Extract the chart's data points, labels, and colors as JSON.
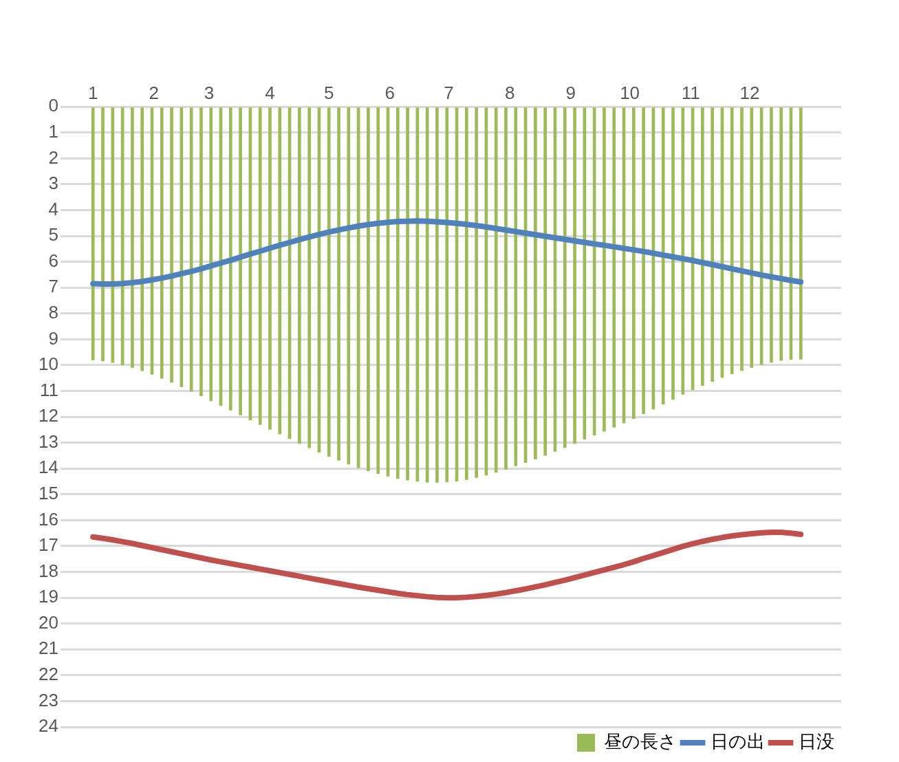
{
  "chart_data": {
    "type": "bar",
    "x": [
      "--01-01",
      "--01-06",
      "--01-11",
      "--01-16",
      "--01-21",
      "--01-26",
      "--01-31",
      "--02-05",
      "--02-10",
      "--02-15",
      "--02-20",
      "--02-25",
      "--03-02",
      "--03-07",
      "--03-12",
      "--03-17",
      "--03-22",
      "--03-27",
      "--04-01",
      "--04-06",
      "--04-11",
      "--04-16",
      "--04-21",
      "--04-26",
      "--05-01",
      "--05-06",
      "--05-11",
      "--05-16",
      "--05-21",
      "--05-26",
      "--05-31",
      "--06-05",
      "--06-10",
      "--06-15",
      "--06-20",
      "--06-25",
      "--06-30",
      "--07-05",
      "--07-10",
      "--07-15",
      "--07-20",
      "--07-25",
      "--07-30",
      "--08-04",
      "--08-09",
      "--08-14",
      "--08-19",
      "--08-24",
      "--08-29",
      "--09-03",
      "--09-08",
      "--09-13",
      "--09-18",
      "--09-23",
      "--09-28",
      "--10-03",
      "--10-08",
      "--10-13",
      "--10-18",
      "--10-23",
      "--10-28",
      "--11-02",
      "--11-07",
      "--11-12",
      "--11-17",
      "--11-22",
      "--11-27",
      "--12-02",
      "--12-07",
      "--12-12",
      "--12-17",
      "--12-22",
      "--12-27"
    ],
    "xlim": [
      "--01-01",
      "--12-31"
    ],
    "xticks": [
      {
        "value": "--01-01",
        "label": "1"
      },
      {
        "value": "--02-01",
        "label": "2"
      },
      {
        "value": "--03-01",
        "label": "3"
      },
      {
        "value": "--04-01",
        "label": "4"
      },
      {
        "value": "--05-01",
        "label": "5"
      },
      {
        "value": "--06-01",
        "label": "6"
      },
      {
        "value": "--07-01",
        "label": "7"
      },
      {
        "value": "--08-01",
        "label": "8"
      },
      {
        "value": "--09-01",
        "label": "9"
      },
      {
        "value": "--10-01",
        "label": "10"
      },
      {
        "value": "--11-01",
        "label": "11"
      },
      {
        "value": "--12-01",
        "label": "12"
      }
    ],
    "series": [
      {
        "name": "昼の長さ",
        "color": "#9bbb59",
        "values": [
          9.8,
          9.84,
          9.9,
          9.99,
          10.09,
          10.22,
          10.36,
          10.51,
          10.67,
          10.84,
          11.01,
          11.19,
          11.38,
          11.56,
          11.74,
          11.93,
          12.12,
          12.3,
          12.49,
          12.67,
          12.85,
          13.03,
          13.2,
          13.37,
          13.53,
          13.68,
          13.83,
          13.97,
          14.09,
          14.2,
          14.3,
          14.39,
          14.45,
          14.5,
          14.53,
          14.54,
          14.52,
          14.49,
          14.43,
          14.35,
          14.26,
          14.15,
          14.03,
          13.9,
          13.77,
          13.63,
          13.49,
          13.34,
          13.19,
          13.03,
          12.87,
          12.71,
          12.56,
          12.4,
          12.24,
          12.07,
          11.88,
          11.7,
          11.51,
          11.32,
          11.13,
          10.96,
          10.79,
          10.63,
          10.48,
          10.34,
          10.21,
          10.09,
          9.98,
          9.89,
          9.82,
          9.78,
          9.77
        ]
      },
      {
        "name": "日の出",
        "type": "line",
        "color": "#4f81bd",
        "values": [
          6.85,
          6.86,
          6.86,
          6.84,
          6.81,
          6.76,
          6.7,
          6.63,
          6.55,
          6.46,
          6.37,
          6.27,
          6.16,
          6.05,
          5.94,
          5.82,
          5.7,
          5.59,
          5.47,
          5.36,
          5.25,
          5.14,
          5.04,
          4.94,
          4.85,
          4.77,
          4.69,
          4.62,
          4.56,
          4.51,
          4.47,
          4.44,
          4.43,
          4.42,
          4.43,
          4.45,
          4.48,
          4.51,
          4.55,
          4.6,
          4.65,
          4.71,
          4.77,
          4.83,
          4.89,
          4.95,
          5.01,
          5.07,
          5.13,
          5.19,
          5.25,
          5.31,
          5.36,
          5.42,
          5.48,
          5.54,
          5.6,
          5.67,
          5.74,
          5.81,
          5.88,
          5.95,
          6.03,
          6.11,
          6.19,
          6.27,
          6.35,
          6.43,
          6.51,
          6.58,
          6.65,
          6.72,
          6.78
        ]
      },
      {
        "name": "日没",
        "type": "line",
        "color": "#c0504d",
        "values": [
          16.65,
          16.7,
          16.76,
          16.83,
          16.9,
          16.98,
          17.06,
          17.14,
          17.22,
          17.3,
          17.38,
          17.46,
          17.54,
          17.61,
          17.68,
          17.75,
          17.82,
          17.89,
          17.96,
          18.03,
          18.1,
          18.17,
          18.24,
          18.31,
          18.38,
          18.45,
          18.52,
          18.59,
          18.65,
          18.71,
          18.77,
          18.83,
          18.88,
          18.92,
          18.96,
          18.99,
          19.0,
          19.0,
          18.98,
          18.95,
          18.91,
          18.86,
          18.8,
          18.73,
          18.66,
          18.58,
          18.5,
          18.41,
          18.32,
          18.22,
          18.12,
          18.02,
          17.92,
          17.82,
          17.72,
          17.61,
          17.48,
          17.37,
          17.25,
          17.13,
          17.01,
          16.91,
          16.82,
          16.74,
          16.67,
          16.61,
          16.56,
          16.52,
          16.49,
          16.47,
          16.47,
          16.5,
          16.55
        ]
      }
    ],
    "ylim": [
      24,
      0
    ],
    "yticks": [
      0,
      1,
      2,
      3,
      4,
      5,
      6,
      7,
      8,
      9,
      10,
      11,
      12,
      13,
      14,
      15,
      16,
      17,
      18,
      19,
      20,
      21,
      22,
      23,
      24
    ],
    "grid": "y",
    "legend": "bottom right",
    "marker": "none",
    "line_style": "solid"
  }
}
